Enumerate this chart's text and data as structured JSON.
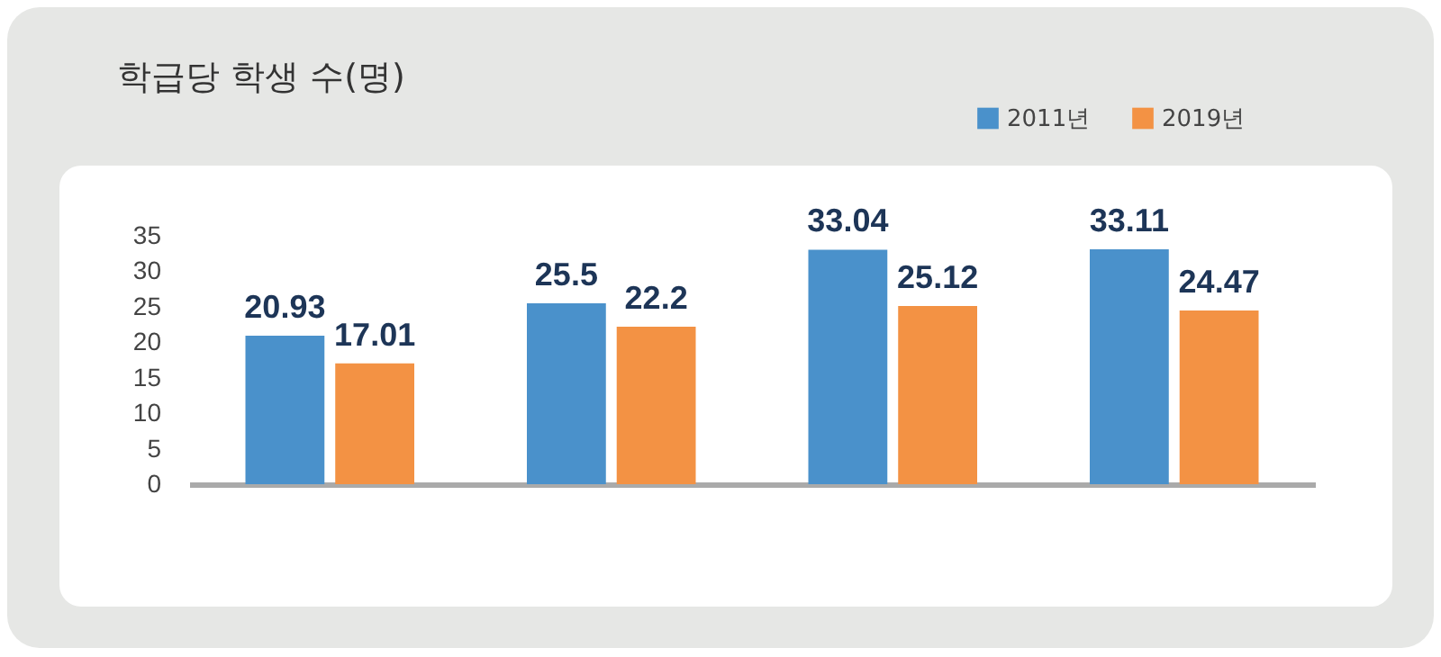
{
  "chart_data": {
    "type": "bar",
    "title": "학급당 학생 수(명)",
    "categories": [
      null,
      null,
      null,
      null
    ],
    "series": [
      {
        "name": "2011년",
        "color": "#4a91cb",
        "values": [
          20.93,
          25.5,
          33.04,
          33.11
        ]
      },
      {
        "name": "2019년",
        "color": "#f39244",
        "values": [
          17.01,
          22.2,
          25.12,
          24.47
        ]
      }
    ],
    "ylim": [
      0,
      35
    ],
    "yticks": [
      0,
      5,
      10,
      15,
      20,
      25,
      30,
      35
    ],
    "data_labels": true,
    "legend": "top right",
    "grid": false
  }
}
